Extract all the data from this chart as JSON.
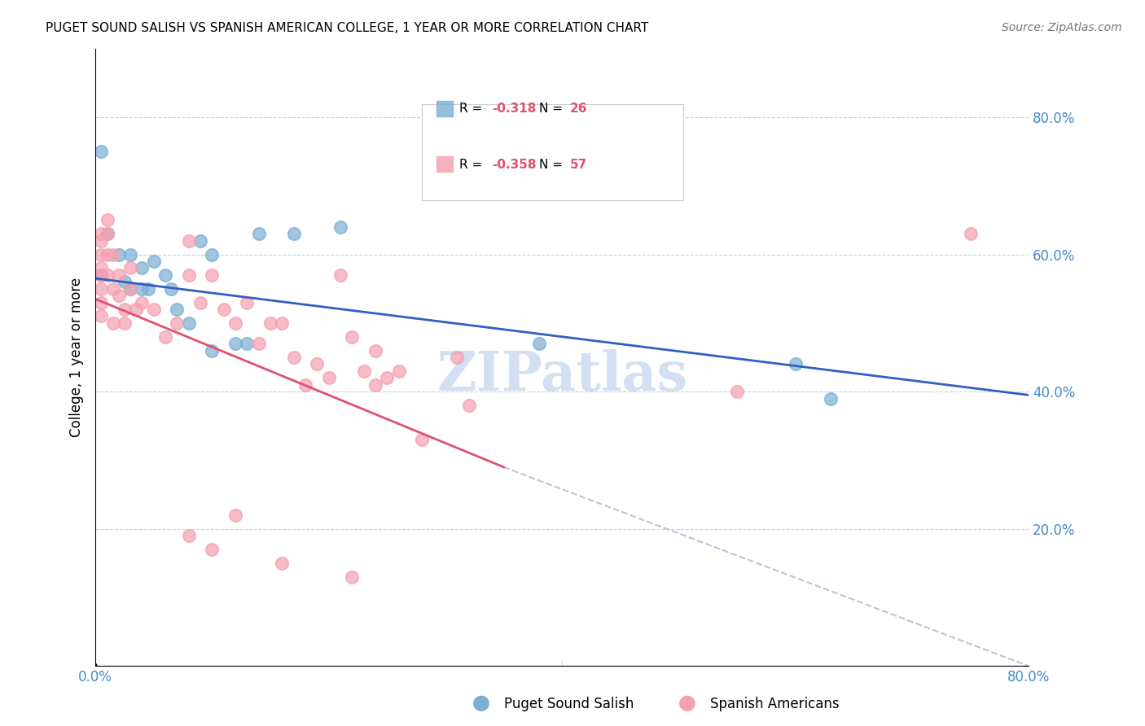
{
  "title": "PUGET SOUND SALISH VS SPANISH AMERICAN COLLEGE, 1 YEAR OR MORE CORRELATION CHART",
  "source": "Source: ZipAtlas.com",
  "xlabel": "",
  "ylabel": "College, 1 year or more",
  "xlim": [
    0.0,
    0.8
  ],
  "ylim": [
    0.0,
    0.9
  ],
  "right_yticks": [
    0.2,
    0.4,
    0.6,
    0.8
  ],
  "right_ytick_labels": [
    "20.0%",
    "40.0%",
    "60.0%",
    "80.0%"
  ],
  "bottom_xticks": [
    0.0,
    0.1,
    0.2,
    0.3,
    0.4,
    0.5,
    0.6,
    0.7,
    0.8
  ],
  "bottom_xtick_labels": [
    "0.0%",
    "",
    "",
    "",
    "",
    "",
    "",
    "",
    "80.0%"
  ],
  "blue_color": "#7bafd4",
  "pink_color": "#f4a0b0",
  "blue_line_color": "#3060c0",
  "pink_line_color": "#e05070",
  "dashed_line_color": "#c0c0d8",
  "legend_blue_R": "R = ",
  "legend_blue_R_val": "-0.318",
  "legend_blue_N": "N = 26",
  "legend_pink_R": "R = ",
  "legend_pink_R_val": "-0.358",
  "legend_pink_N": "N = 57",
  "blue_scatter_x": [
    0.005,
    0.01,
    0.02,
    0.025,
    0.03,
    0.03,
    0.04,
    0.04,
    0.045,
    0.05,
    0.06,
    0.065,
    0.07,
    0.08,
    0.09,
    0.1,
    0.1,
    0.12,
    0.13,
    0.14,
    0.17,
    0.21,
    0.6,
    0.63,
    0.38,
    0.005
  ],
  "blue_scatter_y": [
    0.57,
    0.63,
    0.6,
    0.56,
    0.55,
    0.6,
    0.55,
    0.58,
    0.55,
    0.59,
    0.57,
    0.55,
    0.52,
    0.5,
    0.62,
    0.6,
    0.46,
    0.47,
    0.47,
    0.63,
    0.63,
    0.64,
    0.44,
    0.39,
    0.47,
    0.75
  ],
  "pink_scatter_x": [
    0.005,
    0.005,
    0.005,
    0.005,
    0.005,
    0.005,
    0.005,
    0.005,
    0.01,
    0.01,
    0.01,
    0.01,
    0.015,
    0.015,
    0.015,
    0.02,
    0.02,
    0.025,
    0.025,
    0.03,
    0.03,
    0.035,
    0.04,
    0.05,
    0.06,
    0.07,
    0.08,
    0.08,
    0.09,
    0.1,
    0.11,
    0.12,
    0.13,
    0.14,
    0.15,
    0.16,
    0.17,
    0.18,
    0.19,
    0.2,
    0.21,
    0.22,
    0.23,
    0.24,
    0.25,
    0.26,
    0.31,
    0.32,
    0.08,
    0.1,
    0.12,
    0.24,
    0.28,
    0.55,
    0.75,
    0.16,
    0.22
  ],
  "pink_scatter_y": [
    0.63,
    0.62,
    0.6,
    0.58,
    0.57,
    0.55,
    0.53,
    0.51,
    0.65,
    0.63,
    0.6,
    0.57,
    0.6,
    0.55,
    0.5,
    0.57,
    0.54,
    0.52,
    0.5,
    0.58,
    0.55,
    0.52,
    0.53,
    0.52,
    0.48,
    0.5,
    0.62,
    0.57,
    0.53,
    0.57,
    0.52,
    0.5,
    0.53,
    0.47,
    0.5,
    0.5,
    0.45,
    0.41,
    0.44,
    0.42,
    0.57,
    0.48,
    0.43,
    0.41,
    0.42,
    0.43,
    0.45,
    0.38,
    0.19,
    0.17,
    0.22,
    0.46,
    0.33,
    0.4,
    0.63,
    0.15,
    0.13
  ],
  "blue_line_x0": 0.0,
  "blue_line_x1": 0.8,
  "blue_line_y0": 0.565,
  "blue_line_y1": 0.395,
  "pink_line_x0": 0.0,
  "pink_line_x1": 0.35,
  "pink_line_y0": 0.535,
  "pink_line_y1": 0.29,
  "dashed_line_x0": 0.35,
  "dashed_line_x1": 0.8,
  "dashed_line_y0": 0.29,
  "dashed_line_y1": 0.0,
  "watermark": "ZIPatlas",
  "watermark_color": "#c8d8f0",
  "title_fontsize": 11,
  "axis_color": "#4488cc"
}
